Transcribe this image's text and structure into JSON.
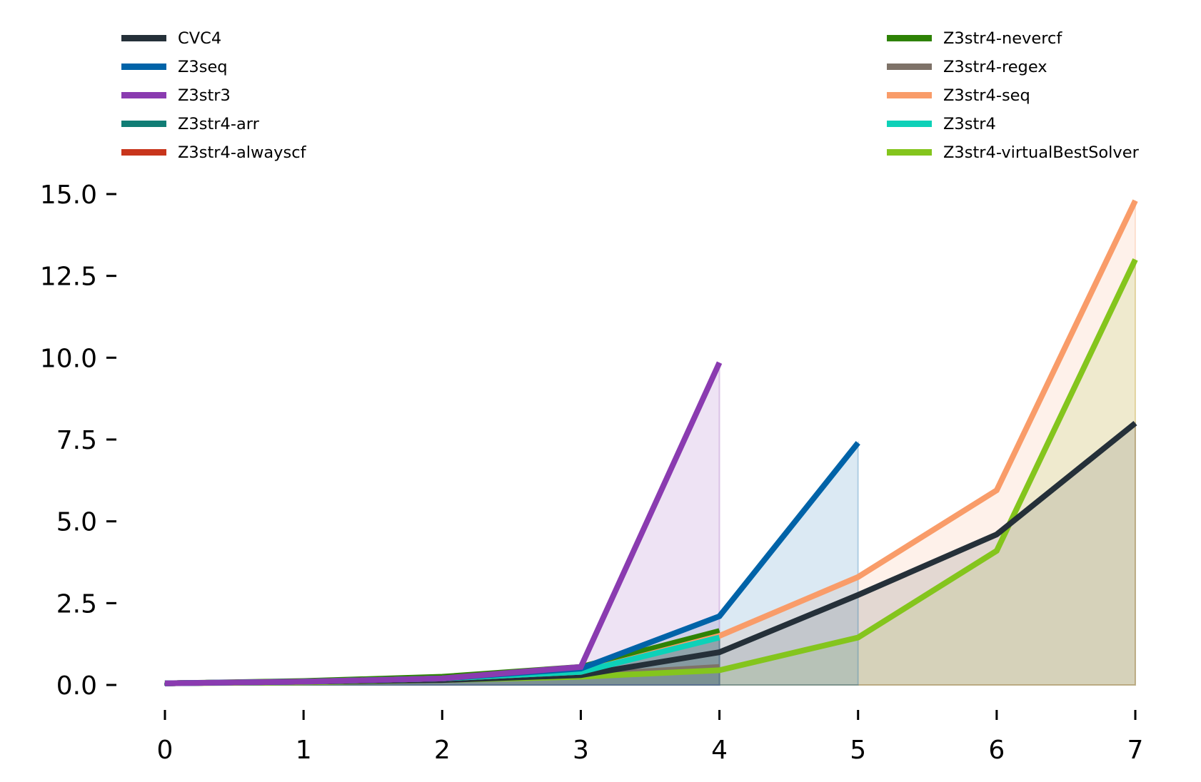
{
  "chart_data": {
    "type": "line",
    "title": "",
    "xlabel": "",
    "ylabel": "",
    "xlim": [
      0,
      7
    ],
    "ylim": [
      0,
      15
    ],
    "xticks": [
      "0",
      "1",
      "2",
      "3",
      "4",
      "5",
      "6",
      "7"
    ],
    "yticks": [
      "0.0",
      "2.5",
      "5.0",
      "7.5",
      "10.0",
      "12.5",
      "15.0"
    ],
    "grid": false,
    "area_fill": true,
    "legend_placement": "top, two columns",
    "series": [
      {
        "name": "CVC4",
        "color": "#253039",
        "x": [
          0,
          1,
          2,
          3,
          4,
          5,
          6,
          7
        ],
        "y": [
          0.05,
          0.1,
          0.15,
          0.3,
          1.0,
          2.75,
          4.6,
          8.0
        ]
      },
      {
        "name": "Z3seq",
        "color": "#0063a8",
        "x": [
          0,
          1,
          2,
          3,
          4,
          5
        ],
        "y": [
          0.05,
          0.1,
          0.2,
          0.5,
          2.1,
          7.4
        ]
      },
      {
        "name": "Z3str3",
        "color": "#8a3bb0",
        "x": [
          0,
          1,
          2,
          3,
          4
        ],
        "y": [
          0.05,
          0.1,
          0.2,
          0.55,
          9.85
        ]
      },
      {
        "name": "Z3str4-arr",
        "color": "#107d75",
        "x": [
          0,
          1,
          2,
          3,
          4
        ],
        "y": [
          0.05,
          0.1,
          0.2,
          0.5,
          1.5
        ]
      },
      {
        "name": "Z3str4-alwayscf",
        "color": "#c8351c",
        "x": [
          0,
          1,
          2,
          3,
          4
        ],
        "y": [
          0.05,
          0.1,
          0.2,
          0.5,
          1.5
        ]
      },
      {
        "name": "Z3str4-nevercf",
        "color": "#2e8205",
        "x": [
          0,
          1,
          2,
          3,
          4
        ],
        "y": [
          0.05,
          0.12,
          0.25,
          0.55,
          1.65
        ]
      },
      {
        "name": "Z3str4-regex",
        "color": "#7e7268",
        "x": [
          0,
          1,
          2,
          3,
          4
        ],
        "y": [
          0.05,
          0.1,
          0.2,
          0.3,
          0.55
        ]
      },
      {
        "name": "Z3str4-seq",
        "color": "#f99c69",
        "x": [
          0,
          1,
          2,
          3,
          4,
          5,
          6,
          7
        ],
        "y": [
          0.05,
          0.1,
          0.2,
          0.4,
          1.5,
          3.3,
          5.95,
          14.8
        ]
      },
      {
        "name": "Z3str4",
        "color": "#0dd1b8",
        "x": [
          0,
          1,
          2,
          3,
          4
        ],
        "y": [
          0.05,
          0.1,
          0.2,
          0.4,
          1.45
        ]
      },
      {
        "name": "Z3str4-virtualBestSolver",
        "color": "#84c51d",
        "x": [
          0,
          1,
          2,
          3,
          4,
          5,
          6,
          7
        ],
        "y": [
          0.05,
          0.08,
          0.15,
          0.25,
          0.45,
          1.45,
          4.1,
          13.0
        ]
      }
    ]
  }
}
